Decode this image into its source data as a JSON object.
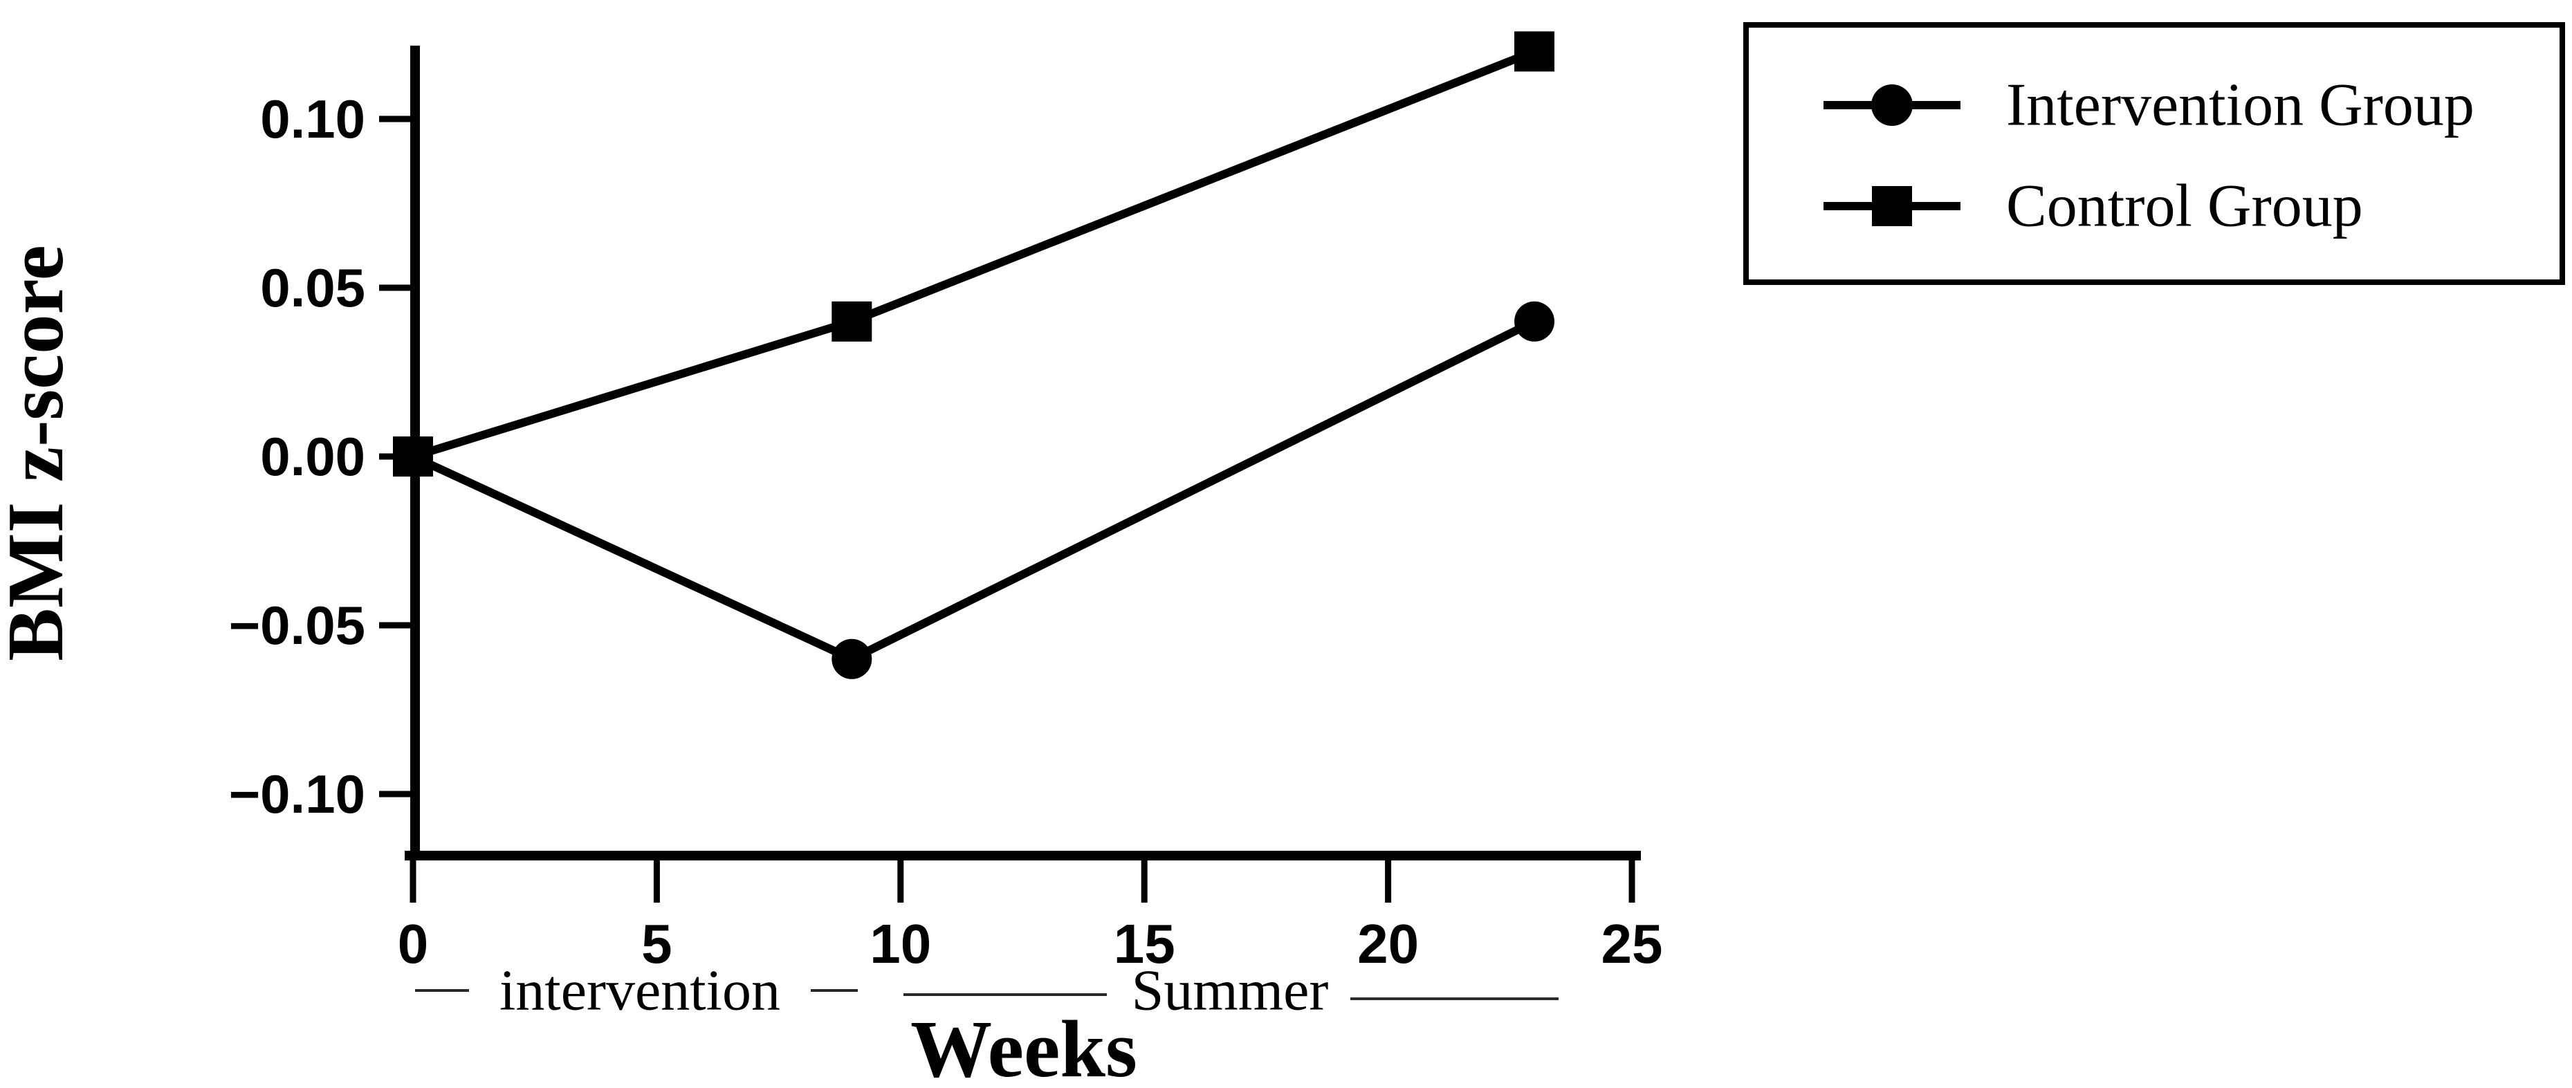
{
  "chart_data": {
    "type": "line",
    "title": "",
    "xlabel": "Weeks",
    "ylabel": "BMI z-score",
    "xlim": [
      -0.2,
      25.2
    ],
    "ylim": [
      -0.12,
      0.12
    ],
    "grid": false,
    "x_ticks": [
      0,
      5,
      10,
      15,
      20,
      25
    ],
    "x_tick_labels": [
      "0",
      "5",
      "10",
      "15",
      "20",
      "25"
    ],
    "y_ticks": [
      0.1,
      0.05,
      0.0,
      -0.05,
      -0.1
    ],
    "y_tick_labels": [
      "0.10",
      "0.05",
      "0.00",
      "−0.05",
      "−0.10"
    ],
    "series": [
      {
        "name": "Intervention Group",
        "marker": "filled-circle",
        "x": [
          0,
          9,
          23
        ],
        "y": [
          0.0,
          -0.06,
          0.04
        ]
      },
      {
        "name": "Control Group",
        "marker": "filled-square",
        "x": [
          0,
          9,
          23
        ],
        "y": [
          0.0,
          0.04,
          0.12
        ]
      }
    ],
    "legend_position": "top-right",
    "phase_annotations": [
      {
        "label": "intervention",
        "x_start": 0,
        "x_end": 9
      },
      {
        "label": "Summer",
        "x_start": 10,
        "x_end": 23.5
      }
    ],
    "colors": {
      "line": "#000000",
      "marker": "#000000",
      "rule": "#2a2a2a"
    }
  }
}
